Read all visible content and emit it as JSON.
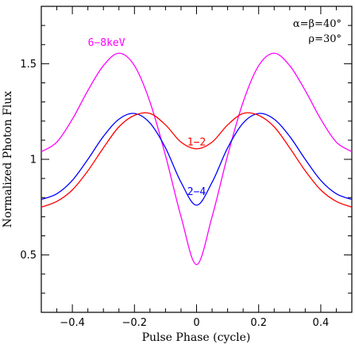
{
  "chart_data": {
    "type": "line",
    "xlabel": "Pulse Phase (cycle)",
    "ylabel": "Normalized Photon Flux",
    "xlim": [
      -0.5,
      0.5
    ],
    "ylim": [
      0.2,
      1.8
    ],
    "yscale": "linear",
    "grid": false,
    "legend": "none",
    "xticks": [
      -0.4,
      -0.2,
      0,
      0.2,
      0.4
    ],
    "xtick_labels": [
      "−0.4",
      "−0.2",
      "0",
      "0.2",
      "0.4"
    ],
    "xminor_step": 0.05,
    "yticks": [
      0.5,
      1,
      1.5
    ],
    "ytick_labels": [
      "0.5",
      "1",
      "1.5"
    ],
    "yminor_step": 0.1,
    "annotations": {
      "line1": "α=β=40°",
      "line2": "ρ=30°"
    },
    "series": [
      {
        "name": "6–8keV",
        "color": "#ff00ff",
        "x": [
          -0.5,
          -0.45,
          -0.4,
          -0.35,
          -0.3,
          -0.25,
          -0.2,
          -0.15,
          -0.1,
          -0.05,
          0,
          0.05,
          0.1,
          0.15,
          0.2,
          0.25,
          0.3,
          0.35,
          0.4,
          0.45,
          0.5
        ],
        "y": [
          1.04,
          1.09,
          1.21,
          1.36,
          1.49,
          1.555,
          1.49,
          1.3,
          1.02,
          0.7,
          0.45,
          0.7,
          1.02,
          1.3,
          1.49,
          1.555,
          1.49,
          1.36,
          1.21,
          1.09,
          1.04
        ]
      },
      {
        "name": "2–4",
        "color": "#0000ff",
        "x": [
          -0.5,
          -0.45,
          -0.4,
          -0.35,
          -0.3,
          -0.25,
          -0.2,
          -0.15,
          -0.1,
          -0.05,
          0,
          0.05,
          0.1,
          0.15,
          0.2,
          0.25,
          0.3,
          0.35,
          0.4,
          0.45,
          0.5
        ],
        "y": [
          0.79,
          0.82,
          0.89,
          1.0,
          1.12,
          1.21,
          1.24,
          1.19,
          1.06,
          0.88,
          0.76,
          0.88,
          1.06,
          1.19,
          1.24,
          1.21,
          1.12,
          1.0,
          0.89,
          0.82,
          0.79
        ]
      },
      {
        "name": "1–2",
        "color": "#ff0000",
        "x": [
          -0.5,
          -0.45,
          -0.4,
          -0.35,
          -0.3,
          -0.25,
          -0.2,
          -0.15,
          -0.1,
          -0.05,
          0,
          0.05,
          0.1,
          0.15,
          0.2,
          0.25,
          0.3,
          0.35,
          0.4,
          0.45,
          0.5
        ],
        "y": [
          0.75,
          0.78,
          0.84,
          0.94,
          1.06,
          1.17,
          1.23,
          1.24,
          1.18,
          1.09,
          1.055,
          1.09,
          1.18,
          1.24,
          1.23,
          1.17,
          1.06,
          0.94,
          0.84,
          0.78,
          0.75
        ]
      }
    ],
    "series_labels": [
      {
        "text": "6−8keV",
        "color": "#ff00ff",
        "x": -0.29,
        "y": 1.61
      },
      {
        "text": "1−2",
        "color": "#ff0000",
        "x": 0.0,
        "y": 1.09
      },
      {
        "text": "2−4",
        "color": "#0000ff",
        "x": 0.0,
        "y": 0.83
      }
    ]
  }
}
